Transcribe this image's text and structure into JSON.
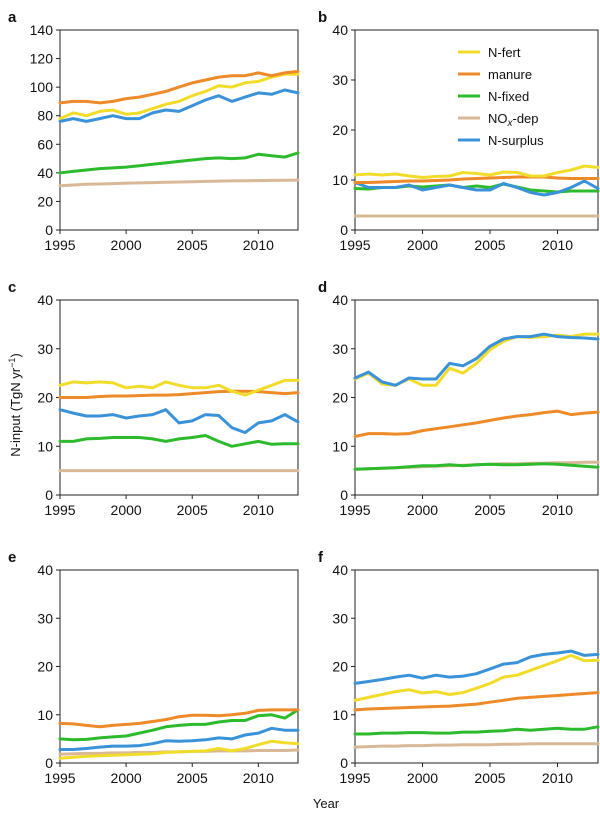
{
  "figure": {
    "ylabel_main": "N-input (TgN yr",
    "ylabel_sup": "−1",
    "ylabel_close": ")",
    "xlabel": "Year"
  },
  "colors": {
    "N-fert": "#f2dc2a",
    "manure": "#ee8a28",
    "N-fixed": "#2dbb2d",
    "NOx-dep": "#d8b896",
    "N-surplus": "#3a92d8"
  },
  "legend": {
    "placement": "top-right of panel b",
    "items": [
      {
        "key": "N-fert",
        "label": "N-fert"
      },
      {
        "key": "manure",
        "label": "manure"
      },
      {
        "key": "N-fixed",
        "label": "N-fixed"
      },
      {
        "key": "NOx-dep",
        "label_main": "NO",
        "label_sub": "x",
        "label_rest": "-dep"
      },
      {
        "key": "N-surplus",
        "label": "N-surplus"
      }
    ]
  },
  "chart_data": [
    {
      "panel": "a",
      "type": "line",
      "x": [
        1995,
        1996,
        1997,
        1998,
        1999,
        2000,
        2001,
        2002,
        2003,
        2004,
        2005,
        2006,
        2007,
        2008,
        2009,
        2010,
        2011,
        2012,
        2013
      ],
      "xticks": [
        1995,
        2000,
        2005,
        2010
      ],
      "ylim": [
        0,
        140
      ],
      "yticks": [
        0,
        20,
        40,
        60,
        80,
        100,
        120,
        140
      ],
      "series": [
        {
          "key": "NOx-dep",
          "values": [
            31,
            31.5,
            32,
            32.2,
            32.5,
            32.8,
            33,
            33.2,
            33.4,
            33.6,
            33.8,
            34,
            34.2,
            34.4,
            34.5,
            34.6,
            34.7,
            34.8,
            34.9
          ]
        },
        {
          "key": "N-fixed",
          "values": [
            40,
            41,
            42,
            43,
            43.5,
            44,
            45,
            46,
            47,
            48,
            49,
            50,
            50.5,
            50,
            50.5,
            53,
            52,
            51,
            54
          ]
        },
        {
          "key": "N-fert",
          "values": [
            78,
            82,
            80,
            83,
            84,
            81,
            82,
            85,
            88,
            90,
            94,
            97,
            101,
            100,
            103,
            104,
            107,
            109,
            109
          ]
        },
        {
          "key": "N-surplus",
          "values": [
            76,
            78,
            76,
            78,
            80,
            78,
            78,
            82,
            84,
            83,
            87,
            91,
            94,
            90,
            93,
            96,
            95,
            98,
            96
          ]
        },
        {
          "key": "manure",
          "values": [
            89,
            90,
            90,
            89,
            90,
            92,
            93,
            95,
            97,
            100,
            103,
            105,
            107,
            108,
            108,
            110,
            108,
            110,
            111
          ]
        }
      ]
    },
    {
      "panel": "b",
      "type": "line",
      "x": [
        1995,
        1996,
        1997,
        1998,
        1999,
        2000,
        2001,
        2002,
        2003,
        2004,
        2005,
        2006,
        2007,
        2008,
        2009,
        2010,
        2011,
        2012,
        2013
      ],
      "xticks": [
        1995,
        2000,
        2005,
        2010
      ],
      "ylim": [
        0,
        40
      ],
      "yticks": [
        0,
        10,
        20,
        30,
        40
      ],
      "series": [
        {
          "key": "NOx-dep",
          "values": [
            2.8,
            2.8,
            2.8,
            2.8,
            2.8,
            2.8,
            2.8,
            2.8,
            2.8,
            2.8,
            2.8,
            2.8,
            2.8,
            2.8,
            2.8,
            2.8,
            2.8,
            2.8,
            2.8
          ]
        },
        {
          "key": "N-fixed",
          "values": [
            8.3,
            8.2,
            8.5,
            8.5,
            8.8,
            8.6,
            8.8,
            9,
            8.5,
            8.8,
            8.5,
            9.2,
            8.6,
            8,
            7.8,
            7.6,
            7.8,
            7.8,
            7.8
          ]
        },
        {
          "key": "N-surplus",
          "values": [
            9.5,
            8.5,
            8.5,
            8.5,
            9,
            8,
            8.5,
            9,
            8.5,
            8,
            8,
            9.3,
            8.5,
            7.5,
            7,
            7.5,
            8.5,
            9.8,
            8.3
          ]
        },
        {
          "key": "manure",
          "values": [
            9.5,
            9.5,
            9.6,
            9.7,
            9.8,
            9.8,
            9.9,
            10,
            10.2,
            10.3,
            10.4,
            10.5,
            10.6,
            10.6,
            10.6,
            10.4,
            10.3,
            10.3,
            10.3
          ]
        },
        {
          "key": "N-fert",
          "values": [
            11,
            11.2,
            11,
            11.2,
            10.8,
            10.5,
            10.7,
            10.8,
            11.5,
            11.3,
            11,
            11.6,
            11.5,
            10.8,
            10.8,
            11.5,
            12,
            12.8,
            12.5
          ]
        }
      ]
    },
    {
      "panel": "c",
      "type": "line",
      "x": [
        1995,
        1996,
        1997,
        1998,
        1999,
        2000,
        2001,
        2002,
        2003,
        2004,
        2005,
        2006,
        2007,
        2008,
        2009,
        2010,
        2011,
        2012,
        2013
      ],
      "xticks": [
        1995,
        2000,
        2005,
        2010
      ],
      "ylim": [
        0,
        40
      ],
      "yticks": [
        0,
        10,
        20,
        30,
        40
      ],
      "series": [
        {
          "key": "NOx-dep",
          "values": [
            5,
            5,
            5,
            5,
            5,
            5,
            5,
            5,
            5,
            5,
            5,
            5,
            5,
            5,
            5,
            5,
            5,
            5,
            5
          ]
        },
        {
          "key": "N-fixed",
          "values": [
            11,
            11,
            11.5,
            11.6,
            11.8,
            11.8,
            11.8,
            11.5,
            11,
            11.5,
            11.8,
            12.2,
            11,
            10,
            10.5,
            11,
            10.4,
            10.5,
            10.5
          ]
        },
        {
          "key": "N-surplus",
          "values": [
            17.5,
            16.8,
            16.2,
            16.2,
            16.5,
            15.8,
            16.2,
            16.5,
            17.5,
            14.8,
            15.2,
            16.5,
            16.3,
            13.8,
            12.8,
            14.8,
            15.2,
            16.5,
            15
          ]
        },
        {
          "key": "manure",
          "values": [
            20,
            20,
            20,
            20.2,
            20.3,
            20.3,
            20.4,
            20.5,
            20.5,
            20.6,
            20.8,
            21,
            21.2,
            21.3,
            21.3,
            21.2,
            21,
            20.8,
            21
          ]
        },
        {
          "key": "N-fert",
          "values": [
            22.5,
            23.2,
            23,
            23.2,
            23,
            22,
            22.3,
            22,
            23.2,
            22.5,
            22,
            22,
            22.5,
            21.3,
            20.5,
            21.5,
            22.5,
            23.5,
            23.5
          ]
        }
      ]
    },
    {
      "panel": "d",
      "type": "line",
      "x": [
        1995,
        1996,
        1997,
        1998,
        1999,
        2000,
        2001,
        2002,
        2003,
        2004,
        2005,
        2006,
        2007,
        2008,
        2009,
        2010,
        2011,
        2012,
        2013
      ],
      "xticks": [
        1995,
        2000,
        2005,
        2010
      ],
      "ylim": [
        0,
        40
      ],
      "yticks": [
        0,
        10,
        20,
        30,
        40
      ],
      "series": [
        {
          "key": "NOx-dep",
          "values": [
            5.3,
            5.4,
            5.5,
            5.6,
            5.7,
            5.8,
            5.9,
            6,
            6.1,
            6.2,
            6.3,
            6.4,
            6.4,
            6.5,
            6.5,
            6.6,
            6.6,
            6.7,
            6.7
          ]
        },
        {
          "key": "N-fixed",
          "values": [
            5.3,
            5.4,
            5.5,
            5.6,
            5.8,
            6,
            6,
            6.2,
            6,
            6.2,
            6.3,
            6.2,
            6.2,
            6.3,
            6.4,
            6.3,
            6.1,
            5.9,
            5.7
          ]
        },
        {
          "key": "manure",
          "values": [
            12,
            12.6,
            12.6,
            12.5,
            12.6,
            13.2,
            13.6,
            14,
            14.4,
            14.8,
            15.3,
            15.8,
            16.2,
            16.5,
            16.9,
            17.2,
            16.5,
            16.8,
            17
          ]
        },
        {
          "key": "N-fert",
          "values": [
            23.8,
            25,
            22.8,
            22.5,
            23.8,
            22.5,
            22.5,
            26,
            25,
            27,
            29.8,
            31.5,
            32.5,
            32.3,
            32.5,
            32.8,
            32.5,
            33,
            33
          ]
        },
        {
          "key": "N-surplus",
          "values": [
            24,
            25.2,
            23.2,
            22.5,
            24,
            23.8,
            23.8,
            27,
            26.5,
            28,
            30.5,
            32,
            32.5,
            32.5,
            33,
            32.5,
            32.3,
            32.2,
            32
          ]
        }
      ]
    },
    {
      "panel": "e",
      "type": "line",
      "x": [
        1995,
        1996,
        1997,
        1998,
        1999,
        2000,
        2001,
        2002,
        2003,
        2004,
        2005,
        2006,
        2007,
        2008,
        2009,
        2010,
        2011,
        2012,
        2013
      ],
      "xticks": [
        1995,
        2000,
        2005,
        2010
      ],
      "ylim": [
        0,
        40
      ],
      "yticks": [
        0,
        10,
        20,
        30,
        40
      ],
      "series": [
        {
          "key": "NOx-dep",
          "values": [
            1.8,
            1.9,
            2,
            2,
            2.1,
            2.1,
            2.2,
            2.2,
            2.3,
            2.3,
            2.4,
            2.4,
            2.5,
            2.5,
            2.5,
            2.6,
            2.6,
            2.6,
            2.7
          ]
        },
        {
          "key": "N-fert",
          "values": [
            1,
            1.2,
            1.4,
            1.5,
            1.6,
            1.7,
            1.8,
            1.9,
            2.2,
            2.3,
            2.4,
            2.5,
            3,
            2.5,
            3,
            3.8,
            4.5,
            4.2,
            4
          ]
        },
        {
          "key": "N-surplus",
          "values": [
            2.8,
            2.8,
            3,
            3.3,
            3.5,
            3.5,
            3.6,
            4,
            4.6,
            4.5,
            4.6,
            4.8,
            5.2,
            5,
            5.8,
            6.2,
            7.2,
            6.8,
            6.8
          ]
        },
        {
          "key": "N-fixed",
          "values": [
            5,
            4.8,
            4.9,
            5.2,
            5.4,
            5.6,
            6.2,
            6.8,
            7.5,
            7.8,
            8,
            8,
            8.5,
            8.8,
            8.8,
            9.8,
            10,
            9.3,
            11
          ]
        },
        {
          "key": "manure",
          "values": [
            8.2,
            8.1,
            7.8,
            7.5,
            7.8,
            8,
            8.2,
            8.6,
            9,
            9.6,
            9.9,
            9.9,
            9.8,
            10,
            10.3,
            10.9,
            11,
            11,
            11
          ]
        }
      ]
    },
    {
      "panel": "f",
      "type": "line",
      "x": [
        1995,
        1996,
        1997,
        1998,
        1999,
        2000,
        2001,
        2002,
        2003,
        2004,
        2005,
        2006,
        2007,
        2008,
        2009,
        2010,
        2011,
        2012,
        2013
      ],
      "xticks": [
        1995,
        2000,
        2005,
        2010
      ],
      "ylim": [
        0,
        40
      ],
      "yticks": [
        0,
        10,
        20,
        30,
        40
      ],
      "series": [
        {
          "key": "NOx-dep",
          "values": [
            3.3,
            3.4,
            3.5,
            3.5,
            3.6,
            3.6,
            3.7,
            3.7,
            3.8,
            3.8,
            3.8,
            3.9,
            3.9,
            4,
            4,
            4,
            4,
            4,
            4
          ]
        },
        {
          "key": "N-fixed",
          "values": [
            6,
            6,
            6.2,
            6.2,
            6.3,
            6.3,
            6.2,
            6.2,
            6.4,
            6.4,
            6.6,
            6.7,
            7,
            6.8,
            7,
            7.2,
            7,
            7,
            7.5
          ]
        },
        {
          "key": "manure",
          "values": [
            11,
            11.2,
            11.3,
            11.4,
            11.5,
            11.6,
            11.7,
            11.8,
            12,
            12.2,
            12.6,
            13,
            13.4,
            13.6,
            13.8,
            14,
            14.2,
            14.4,
            14.6
          ]
        },
        {
          "key": "N-fert",
          "values": [
            13,
            13.6,
            14.2,
            14.8,
            15.2,
            14.5,
            14.8,
            14.2,
            14.6,
            15.5,
            16.5,
            17.8,
            18.2,
            19.2,
            20.2,
            21.2,
            22.3,
            21.2,
            21.3
          ]
        },
        {
          "key": "N-surplus",
          "values": [
            16.5,
            16.9,
            17.3,
            17.8,
            18.2,
            17.6,
            18.2,
            17.8,
            18,
            18.5,
            19.5,
            20.5,
            20.8,
            22,
            22.5,
            22.8,
            23.2,
            22.3,
            22.5
          ]
        }
      ]
    }
  ]
}
